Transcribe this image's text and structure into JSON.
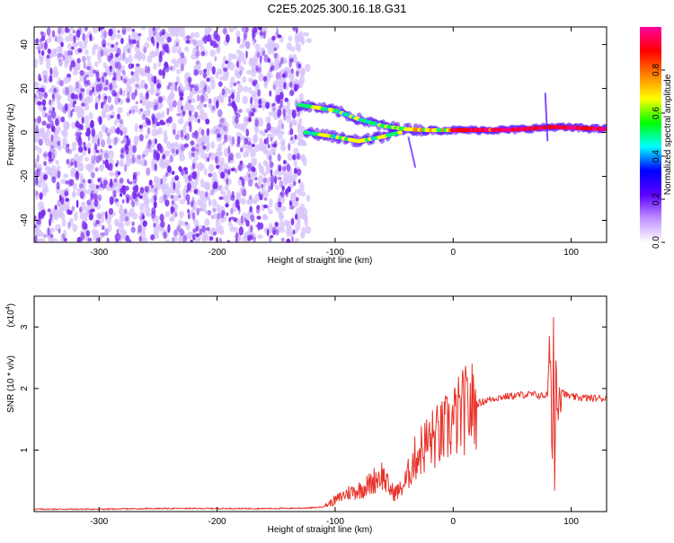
{
  "title": "C2E5.2025.300.16.18.G31",
  "colors": {
    "snr_line": "#e8332a",
    "spec_dot": "#7a2cf0",
    "spec_light": "#d7c4fb"
  },
  "chart_data": [
    {
      "type": "heatmap",
      "xlabel": "Height of straight line (km)",
      "ylabel": "Frequency (Hz)",
      "xlim": [
        -355,
        130
      ],
      "ylim": [
        -50,
        48
      ],
      "xticks": [
        -300,
        -200,
        -100,
        0,
        100
      ],
      "yticks": [
        -40,
        -20,
        0,
        20,
        40
      ],
      "colorbar": {
        "label": "Normalized spectral amplitude",
        "range": [
          0,
          1
        ],
        "ticks": [
          0.0,
          0.2,
          0.4,
          0.6,
          0.8
        ],
        "colors": [
          "#ffffff",
          "#c090ff",
          "#5a00ff",
          "#0000ff",
          "#00ffff",
          "#00ff00",
          "#ffff00",
          "#ff8000",
          "#ff0000",
          "#ff00a0"
        ]
      },
      "features": {
        "noise_region_x": [
          -355,
          -130
        ],
        "signal_track": [
          {
            "x": -130,
            "f": 12.5
          },
          {
            "x": -100,
            "f": 10
          },
          {
            "x": -80,
            "f": 6
          },
          {
            "x": -60,
            "f": 3
          },
          {
            "x": -40,
            "f": 1.5
          },
          {
            "x": -20,
            "f": 1
          },
          {
            "x": 0,
            "f": 1
          },
          {
            "x": 50,
            "f": 1.2
          },
          {
            "x": 85,
            "f": 2.5
          },
          {
            "x": 130,
            "f": 1.5
          }
        ],
        "secondary_track": [
          {
            "x": -125,
            "f": 0
          },
          {
            "x": -100,
            "f": -2
          },
          {
            "x": -80,
            "f": -4
          },
          {
            "x": -60,
            "f": -2
          },
          {
            "x": -45,
            "f": 0
          }
        ]
      }
    },
    {
      "type": "line",
      "xlabel": "Height of straight line (km)",
      "ylabel": "SNR (10 * v/v)",
      "scale_label": "(x10",
      "scale_exponent": "4",
      "ylabel_main": "SNR (10 * v/v)",
      "xlim": [
        -355,
        130
      ],
      "ylim": [
        0,
        3.5
      ],
      "xticks": [
        -300,
        -200,
        -100,
        0,
        100
      ],
      "yticks": [
        1,
        2,
        3
      ],
      "series": [
        {
          "x": [
            -355,
            -300,
            -250,
            -200,
            -150,
            -120,
            -110,
            -100,
            -90,
            -80,
            -70,
            -65,
            -60,
            -55,
            -50,
            -45,
            -40,
            -35,
            -30,
            -25,
            -20,
            -15,
            -10,
            -5,
            0,
            5,
            10,
            20,
            30,
            40,
            50,
            60,
            70,
            75,
            80,
            82,
            84,
            85,
            86,
            87,
            88,
            90,
            95,
            100,
            110,
            120,
            130
          ],
          "y": [
            0.04,
            0.04,
            0.05,
            0.05,
            0.05,
            0.06,
            0.08,
            0.18,
            0.3,
            0.35,
            0.45,
            0.55,
            0.6,
            0.4,
            0.3,
            0.35,
            0.5,
            0.75,
            0.95,
            1.05,
            1.15,
            1.2,
            1.25,
            1.35,
            1.45,
            1.55,
            1.65,
            1.75,
            1.82,
            1.86,
            1.88,
            1.9,
            1.9,
            1.88,
            1.9,
            2.6,
            0.9,
            3.05,
            0.25,
            2.5,
            1.8,
            2.05,
            1.9,
            1.86,
            1.85,
            1.84,
            1.84
          ]
        }
      ]
    }
  ]
}
